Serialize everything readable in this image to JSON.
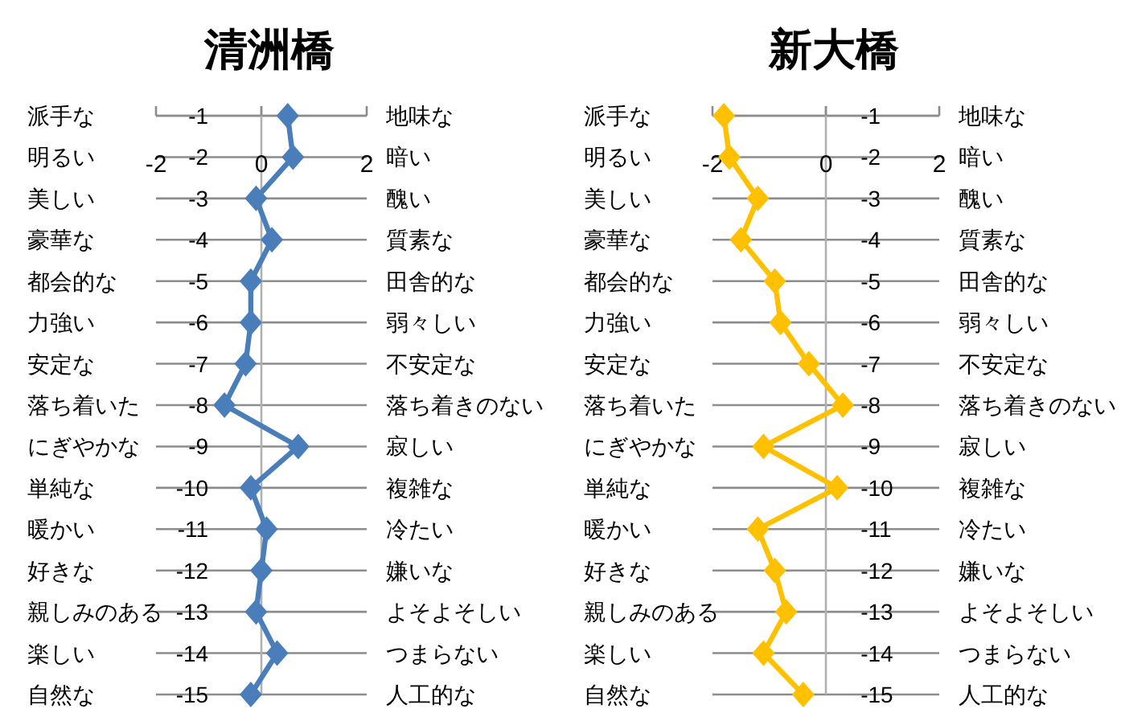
{
  "chart_data": [
    {
      "type": "line",
      "title": "清洲橋",
      "xlim": [
        -2,
        2
      ],
      "xticks": [
        -2,
        0,
        2
      ],
      "ylim": [
        -15,
        -1
      ],
      "yticks": [
        -1,
        -2,
        -3,
        -4,
        -5,
        -6,
        -7,
        -8,
        -9,
        -10,
        -11,
        -12,
        -13,
        -14,
        -15
      ],
      "grid": "y",
      "marker": "diamond",
      "line_style": "solid",
      "series": [
        {
          "color": "#4a7ebb",
          "x": [
            0.5,
            0.6,
            -0.1,
            0.2,
            -0.2,
            -0.2,
            -0.3,
            -0.7,
            0.7,
            -0.2,
            0.1,
            0,
            -0.1,
            0.3,
            -0.2
          ],
          "values": [
            -1,
            -2,
            -3,
            -4,
            -5,
            -6,
            -7,
            -8,
            -9,
            -10,
            -11,
            -12,
            -13,
            -14,
            -15
          ]
        }
      ],
      "annotations": [
        "派手な",
        "明るい",
        "美しい",
        "豪華な",
        "都会的な",
        "力強い",
        "安定な",
        "落ち着いた",
        "にぎやかな",
        "単純な",
        "暖かい",
        "好きな",
        "親しみのある",
        "楽しい",
        "自然な",
        "地味な",
        "暗い",
        "醜い",
        "質素な",
        "田舎的な",
        "弱々しい",
        "不安定な",
        "落ち着きのない",
        "寂しい",
        "複雑な",
        "冷たい",
        "嫌いな",
        "よそよそしい",
        "つまらない",
        "人工的な"
      ]
    },
    {
      "type": "line",
      "title": "新大橋",
      "xlim": [
        -2,
        2
      ],
      "xticks": [
        -2,
        0,
        2
      ],
      "ylim": [
        -15,
        -1
      ],
      "yticks": [
        -1,
        -2,
        -3,
        -4,
        -5,
        -6,
        -7,
        -8,
        -9,
        -10,
        -11,
        -12,
        -13,
        -14,
        -15
      ],
      "grid": "y",
      "marker": "diamond",
      "line_style": "solid",
      "series": [
        {
          "color": "#ffc000",
          "x": [
            -1.8,
            -1.7,
            -1.2,
            -1.5,
            -0.9,
            -0.8,
            -0.3,
            0.3,
            -1.1,
            0.2,
            -1.2,
            -0.9,
            -0.7,
            -1.1,
            -0.4
          ],
          "values": [
            -1,
            -2,
            -3,
            -4,
            -5,
            -6,
            -7,
            -8,
            -9,
            -10,
            -11,
            -12,
            -13,
            -14,
            -15
          ]
        }
      ],
      "annotations": [
        "派手な",
        "明るい",
        "美しい",
        "豪華な",
        "都会的な",
        "力強い",
        "安定な",
        "落ち着いた",
        "にぎやかな",
        "単純な",
        "暖かい",
        "好きな",
        "親しみのある",
        "楽しい",
        "自然な",
        "地味な",
        "暗い",
        "醜い",
        "質素な",
        "田舎的な",
        "弱々しい",
        "不安定な",
        "落ち着きのない",
        "寂しい",
        "複雑な",
        "冷たい",
        "嫌いな",
        "よそよそしい",
        "つまらない",
        "人工的な"
      ]
    }
  ]
}
